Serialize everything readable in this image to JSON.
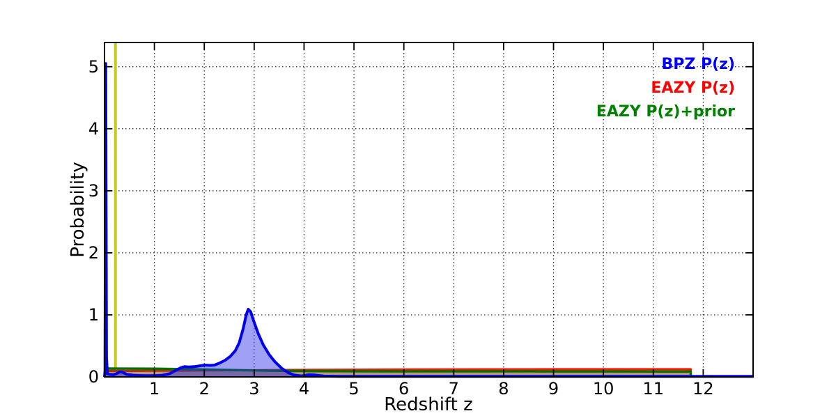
{
  "figure": {
    "background": "#ffffff",
    "frame_color": "#000000",
    "grid_color": "#222222"
  },
  "chart_data": {
    "type": "line",
    "title": "",
    "xlabel": "Redshift z",
    "ylabel": "Probability",
    "xlim": [
      0,
      13
    ],
    "ylim": [
      0,
      5.39
    ],
    "xticks": [
      1,
      2,
      3,
      4,
      5,
      6,
      7,
      8,
      9,
      10,
      11,
      12
    ],
    "yticks": [
      0,
      1,
      2,
      3,
      4,
      5
    ],
    "grid": "dotted",
    "legend": {
      "position": "upper right",
      "entries": [
        {
          "label": "BPZ P(z)",
          "color": "#0000ff"
        },
        {
          "label": "EAZY P(z)",
          "color": "#ff0000"
        },
        {
          "label": "EAZY P(z)+prior",
          "color": "#008000"
        }
      ]
    },
    "vline": {
      "x": 0.22,
      "color": "#c8c81e",
      "top": 5.39,
      "bottom": 0.135
    },
    "series": [
      {
        "name": "EAZY P(z)",
        "color": "#ff1500",
        "fill": "rgba(255,60,40,0.42)",
        "lw": 3,
        "points": [
          [
            0,
            0
          ],
          [
            0.02,
            0.095
          ],
          [
            0.5,
            0.096
          ],
          [
            1,
            0.098
          ],
          [
            1.5,
            0.1
          ],
          [
            2,
            0.102
          ],
          [
            2.5,
            0.105
          ],
          [
            3,
            0.108
          ],
          [
            3.5,
            0.111
          ],
          [
            4,
            0.113
          ],
          [
            5,
            0.117
          ],
          [
            6,
            0.12
          ],
          [
            7,
            0.122
          ],
          [
            8,
            0.124
          ],
          [
            9,
            0.125
          ],
          [
            10,
            0.125
          ],
          [
            11.75,
            0.125
          ],
          [
            11.75,
            0
          ]
        ]
      },
      {
        "name": "EAZY P(z)+prior",
        "color": "#007000",
        "fill": "rgba(20,110,20,0.30)",
        "lw": 3.5,
        "points": [
          [
            0,
            0
          ],
          [
            0.02,
            0.135
          ],
          [
            0.5,
            0.134
          ],
          [
            1,
            0.131
          ],
          [
            1.5,
            0.126
          ],
          [
            2,
            0.119
          ],
          [
            2.5,
            0.111
          ],
          [
            3,
            0.104
          ],
          [
            3.5,
            0.098
          ],
          [
            4,
            0.094
          ],
          [
            5,
            0.091
          ],
          [
            6,
            0.09
          ],
          [
            7,
            0.09
          ],
          [
            8,
            0.09
          ],
          [
            9,
            0.089
          ],
          [
            10,
            0.089
          ],
          [
            11.75,
            0.088
          ],
          [
            11.75,
            0
          ]
        ]
      },
      {
        "name": "BPZ P(z)",
        "color": "#0000ee",
        "fill": "rgba(45,45,230,0.45)",
        "lw": 4,
        "points": [
          [
            0,
            0
          ],
          [
            0.01,
            0.1
          ],
          [
            0.025,
            5.05
          ],
          [
            0.04,
            0.3
          ],
          [
            0.06,
            0.05
          ],
          [
            0.1,
            0.04
          ],
          [
            0.18,
            0.035
          ],
          [
            0.25,
            0.055
          ],
          [
            0.3,
            0.08
          ],
          [
            0.36,
            0.075
          ],
          [
            0.45,
            0.04
          ],
          [
            0.6,
            0.025
          ],
          [
            0.8,
            0.02
          ],
          [
            1.0,
            0.02
          ],
          [
            1.15,
            0.025
          ],
          [
            1.3,
            0.05
          ],
          [
            1.42,
            0.1
          ],
          [
            1.52,
            0.145
          ],
          [
            1.6,
            0.165
          ],
          [
            1.68,
            0.16
          ],
          [
            1.8,
            0.165
          ],
          [
            1.92,
            0.18
          ],
          [
            2.02,
            0.19
          ],
          [
            2.12,
            0.185
          ],
          [
            2.2,
            0.19
          ],
          [
            2.3,
            0.22
          ],
          [
            2.42,
            0.27
          ],
          [
            2.52,
            0.33
          ],
          [
            2.62,
            0.42
          ],
          [
            2.7,
            0.55
          ],
          [
            2.78,
            0.78
          ],
          [
            2.84,
            1.0
          ],
          [
            2.88,
            1.09
          ],
          [
            2.93,
            1.05
          ],
          [
            3.0,
            0.88
          ],
          [
            3.08,
            0.7
          ],
          [
            3.18,
            0.52
          ],
          [
            3.3,
            0.36
          ],
          [
            3.42,
            0.24
          ],
          [
            3.55,
            0.14
          ],
          [
            3.68,
            0.07
          ],
          [
            3.8,
            0.03
          ],
          [
            3.95,
            0.015
          ],
          [
            4.1,
            0.035
          ],
          [
            4.22,
            0.03
          ],
          [
            4.4,
            0.012
          ],
          [
            4.7,
            0.008
          ],
          [
            13,
            0.008
          ]
        ]
      }
    ]
  }
}
